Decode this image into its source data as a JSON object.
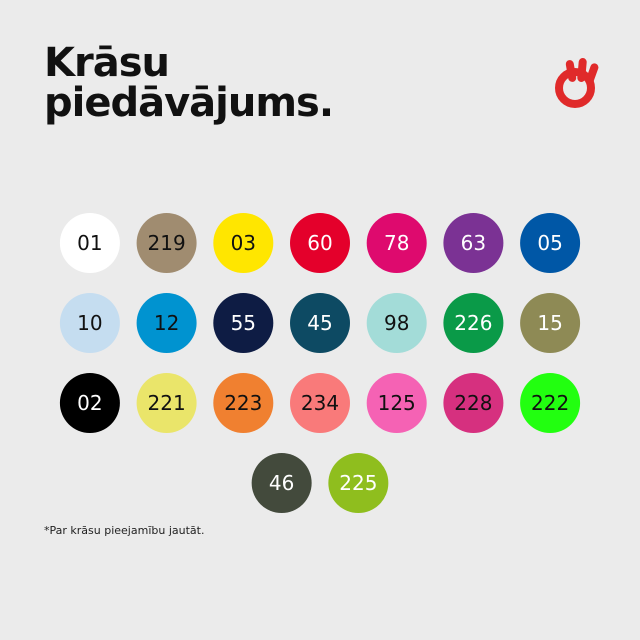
{
  "title": [
    "Krāsu",
    "piedāvājums."
  ],
  "swatches": {
    "rows": [
      [
        {
          "label": "01",
          "color": "#ffffff",
          "text_color": "#111111"
        },
        {
          "label": "219",
          "color": "#a08c70",
          "text_color": "#111111"
        },
        {
          "label": "03",
          "color": "#ffe600",
          "text_color": "#111111"
        },
        {
          "label": "60",
          "color": "#e4002b",
          "text_color": "#ffffff"
        },
        {
          "label": "78",
          "color": "#de0a6e",
          "text_color": "#ffffff"
        },
        {
          "label": "63",
          "color": "#7b3294",
          "text_color": "#ffffff"
        },
        {
          "label": "05",
          "color": "#0057a6",
          "text_color": "#ffffff"
        }
      ],
      [
        {
          "label": "10",
          "color": "#c5ddf0",
          "text_color": "#111111"
        },
        {
          "label": "12",
          "color": "#0093d0",
          "text_color": "#111111"
        },
        {
          "label": "55",
          "color": "#0e1c44",
          "text_color": "#ffffff"
        },
        {
          "label": "45",
          "color": "#0d4a63",
          "text_color": "#ffffff"
        },
        {
          "label": "98",
          "color": "#a3dcd8",
          "text_color": "#111111"
        },
        {
          "label": "226",
          "color": "#0a9a48",
          "text_color": "#ffffff"
        },
        {
          "label": "15",
          "color": "#8e8a55",
          "text_color": "#ffffff"
        }
      ],
      [
        {
          "label": "02",
          "color": "#000000",
          "text_color": "#ffffff"
        },
        {
          "label": "221",
          "color": "#eae56a",
          "text_color": "#111111"
        },
        {
          "label": "223",
          "color": "#f08030",
          "text_color": "#111111"
        },
        {
          "label": "234",
          "color": "#f97a7a",
          "text_color": "#111111"
        },
        {
          "label": "125",
          "color": "#f562b4",
          "text_color": "#111111"
        },
        {
          "label": "228",
          "color": "#d6307f",
          "text_color": "#111111"
        },
        {
          "label": "222",
          "color": "#22ff10",
          "text_color": "#111111"
        }
      ],
      [
        {
          "label": "46",
          "color": "#434a3c",
          "text_color": "#ffffff"
        },
        {
          "label": "225",
          "color": "#8fbe1e",
          "text_color": "#ffffff"
        }
      ]
    ]
  },
  "footnote": "*Par krāsu pieejamību jautāt."
}
